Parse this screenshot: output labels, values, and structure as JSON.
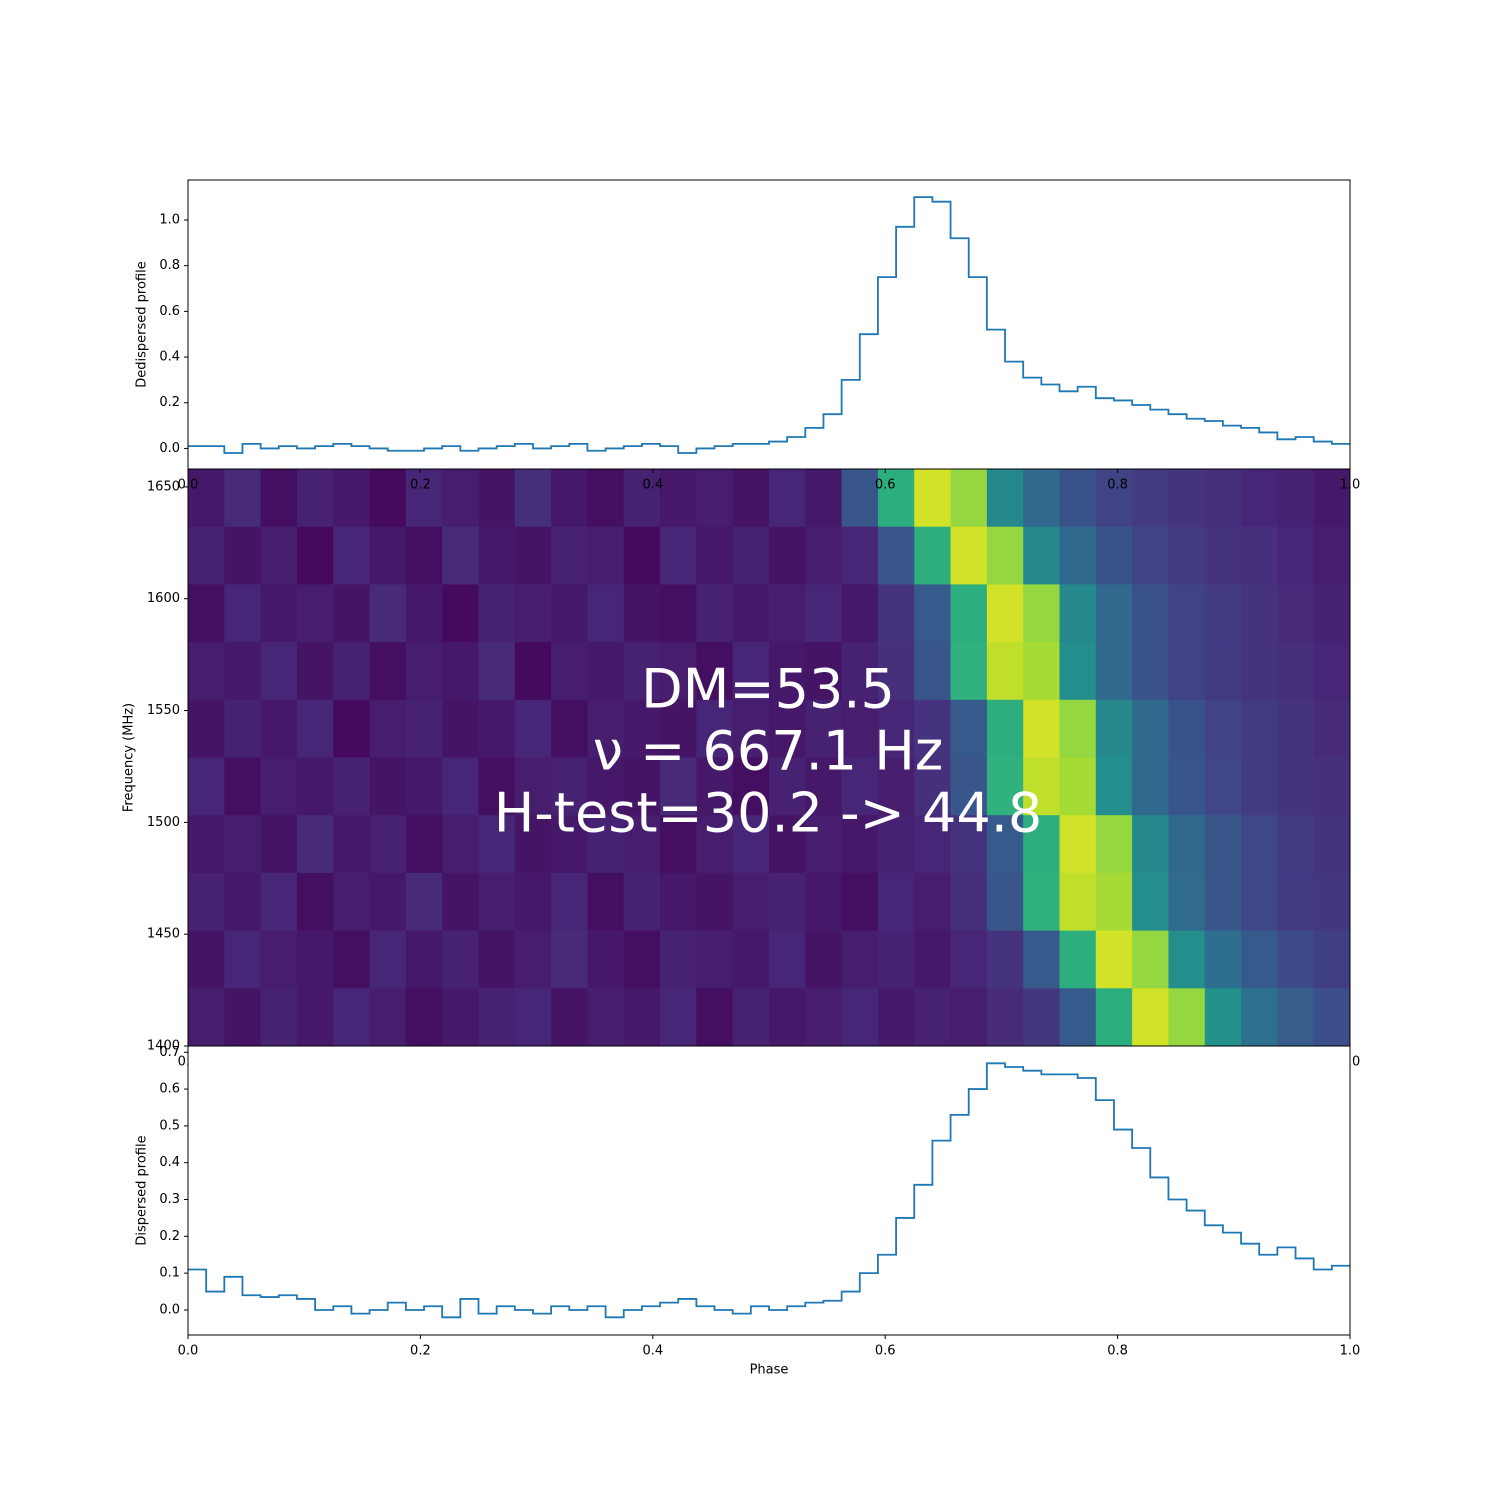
{
  "chart_data": [
    {
      "type": "step",
      "ylabel": "Dedispersed profile",
      "color": "#1f77b4",
      "xlim": [
        0,
        1
      ],
      "ylim": [
        -0.09,
        1.175
      ],
      "xticks": [
        {
          "value": 0,
          "label": "0.0"
        },
        {
          "value": 0.2,
          "label": "0.2"
        },
        {
          "value": 0.4,
          "label": "0.4"
        },
        {
          "value": 0.6,
          "label": "0.6"
        },
        {
          "value": 0.8,
          "label": "0.8"
        },
        {
          "value": 1,
          "label": "1.0"
        }
      ],
      "yticks": [
        {
          "value": 0,
          "label": "0.0"
        },
        {
          "value": 0.2,
          "label": "0.2"
        },
        {
          "value": 0.4,
          "label": "0.4"
        },
        {
          "value": 0.6,
          "label": "0.6"
        },
        {
          "value": 0.8,
          "label": "0.8"
        },
        {
          "value": 1,
          "label": "1.0"
        }
      ],
      "values": [
        0.01,
        0.01,
        -0.02,
        0.02,
        0.0,
        0.01,
        0.0,
        0.01,
        0.02,
        0.01,
        0.0,
        -0.01,
        -0.01,
        0.0,
        0.01,
        -0.01,
        0.0,
        0.01,
        0.02,
        0.0,
        0.01,
        0.02,
        -0.01,
        0.0,
        0.01,
        0.02,
        0.01,
        -0.02,
        0.0,
        0.01,
        0.02,
        0.02,
        0.03,
        0.05,
        0.09,
        0.15,
        0.3,
        0.5,
        0.75,
        0.97,
        1.1,
        1.08,
        0.92,
        0.75,
        0.52,
        0.38,
        0.31,
        0.28,
        0.25,
        0.27,
        0.22,
        0.21,
        0.19,
        0.17,
        0.15,
        0.13,
        0.12,
        0.1,
        0.09,
        0.07,
        0.04,
        0.05,
        0.03,
        0.02
      ]
    },
    {
      "type": "heatmap",
      "ylabel": "Frequency (MHz)",
      "xlim": [
        0,
        1
      ],
      "ylim": [
        1400,
        1658
      ],
      "xticks": [
        {
          "value": 0,
          "label": "0.0"
        },
        {
          "value": 0.2,
          "label": "0.2"
        },
        {
          "value": 0.4,
          "label": "0.4"
        },
        {
          "value": 0.6,
          "label": "0.6"
        },
        {
          "value": 0.8,
          "label": "0.8"
        },
        {
          "value": 1,
          "label": "1.0"
        }
      ],
      "yticks": [
        1400,
        1450,
        1500,
        1550,
        1600,
        1650
      ],
      "annotations": [
        "DM=53.5",
        "ν = 667.1 Hz",
        "H-test=30.2 -> 44.8"
      ],
      "z": [
        [
          0.3,
          0.34,
          0.28,
          0.32,
          0.3,
          0.27,
          0.33,
          0.31,
          0.29,
          0.35,
          0.3,
          0.28,
          0.32,
          0.3,
          0.31,
          0.29,
          0.33,
          0.3,
          0.45,
          0.72,
          0.95,
          0.88,
          0.6,
          0.5,
          0.44,
          0.4,
          0.38,
          0.36,
          0.35,
          0.33,
          0.32,
          0.3
        ],
        [
          0.32,
          0.29,
          0.31,
          0.27,
          0.33,
          0.3,
          0.28,
          0.34,
          0.3,
          0.29,
          0.32,
          0.31,
          0.27,
          0.33,
          0.3,
          0.32,
          0.29,
          0.31,
          0.33,
          0.45,
          0.72,
          0.95,
          0.88,
          0.6,
          0.5,
          0.44,
          0.4,
          0.38,
          0.36,
          0.35,
          0.33,
          0.31
        ],
        [
          0.28,
          0.33,
          0.3,
          0.31,
          0.29,
          0.34,
          0.3,
          0.27,
          0.32,
          0.31,
          0.3,
          0.33,
          0.29,
          0.28,
          0.32,
          0.3,
          0.31,
          0.33,
          0.3,
          0.36,
          0.46,
          0.72,
          0.95,
          0.88,
          0.6,
          0.5,
          0.44,
          0.4,
          0.38,
          0.36,
          0.34,
          0.32
        ],
        [
          0.31,
          0.3,
          0.33,
          0.29,
          0.32,
          0.28,
          0.31,
          0.3,
          0.34,
          0.27,
          0.31,
          0.3,
          0.32,
          0.31,
          0.28,
          0.33,
          0.3,
          0.29,
          0.32,
          0.35,
          0.45,
          0.73,
          0.93,
          0.9,
          0.62,
          0.5,
          0.44,
          0.4,
          0.38,
          0.36,
          0.35,
          0.33
        ],
        [
          0.29,
          0.32,
          0.3,
          0.33,
          0.27,
          0.31,
          0.32,
          0.29,
          0.3,
          0.33,
          0.28,
          0.31,
          0.3,
          0.29,
          0.33,
          0.31,
          0.3,
          0.32,
          0.31,
          0.33,
          0.36,
          0.46,
          0.72,
          0.95,
          0.88,
          0.6,
          0.5,
          0.44,
          0.4,
          0.38,
          0.36,
          0.34
        ],
        [
          0.33,
          0.28,
          0.31,
          0.3,
          0.32,
          0.29,
          0.3,
          0.33,
          0.28,
          0.31,
          0.32,
          0.3,
          0.29,
          0.34,
          0.3,
          0.28,
          0.32,
          0.3,
          0.33,
          0.31,
          0.35,
          0.45,
          0.73,
          0.93,
          0.9,
          0.62,
          0.5,
          0.45,
          0.41,
          0.38,
          0.36,
          0.35
        ],
        [
          0.3,
          0.31,
          0.29,
          0.34,
          0.3,
          0.32,
          0.28,
          0.31,
          0.33,
          0.29,
          0.3,
          0.32,
          0.31,
          0.28,
          0.31,
          0.33,
          0.29,
          0.31,
          0.3,
          0.32,
          0.33,
          0.36,
          0.46,
          0.72,
          0.95,
          0.88,
          0.6,
          0.5,
          0.45,
          0.41,
          0.38,
          0.36
        ],
        [
          0.32,
          0.3,
          0.33,
          0.28,
          0.31,
          0.3,
          0.34,
          0.29,
          0.31,
          0.3,
          0.33,
          0.28,
          0.32,
          0.3,
          0.29,
          0.31,
          0.32,
          0.3,
          0.28,
          0.33,
          0.31,
          0.35,
          0.45,
          0.73,
          0.93,
          0.9,
          0.62,
          0.51,
          0.45,
          0.41,
          0.38,
          0.37
        ],
        [
          0.29,
          0.33,
          0.31,
          0.3,
          0.28,
          0.33,
          0.3,
          0.32,
          0.29,
          0.31,
          0.34,
          0.3,
          0.28,
          0.32,
          0.31,
          0.3,
          0.33,
          0.29,
          0.31,
          0.32,
          0.3,
          0.33,
          0.36,
          0.46,
          0.72,
          0.95,
          0.88,
          0.62,
          0.52,
          0.46,
          0.42,
          0.39
        ],
        [
          0.31,
          0.29,
          0.32,
          0.3,
          0.33,
          0.31,
          0.28,
          0.3,
          0.32,
          0.33,
          0.29,
          0.31,
          0.3,
          0.33,
          0.28,
          0.32,
          0.3,
          0.31,
          0.33,
          0.3,
          0.32,
          0.31,
          0.34,
          0.37,
          0.46,
          0.72,
          0.95,
          0.88,
          0.63,
          0.53,
          0.47,
          0.43
        ]
      ]
    },
    {
      "type": "step",
      "ylabel": "Dispersed profile",
      "xlabel": "Phase",
      "color": "#1f77b4",
      "xlim": [
        0,
        1
      ],
      "ylim": [
        -0.068,
        0.717
      ],
      "xticks": [
        {
          "value": 0,
          "label": "0.0"
        },
        {
          "value": 0.2,
          "label": "0.2"
        },
        {
          "value": 0.4,
          "label": "0.4"
        },
        {
          "value": 0.6,
          "label": "0.6"
        },
        {
          "value": 0.8,
          "label": "0.8"
        },
        {
          "value": 1,
          "label": "1.0"
        }
      ],
      "yticks": [
        {
          "value": 0,
          "label": "0.0"
        },
        {
          "value": 0.1,
          "label": "0.1"
        },
        {
          "value": 0.2,
          "label": "0.2"
        },
        {
          "value": 0.3,
          "label": "0.3"
        },
        {
          "value": 0.4,
          "label": "0.4"
        },
        {
          "value": 0.5,
          "label": "0.5"
        },
        {
          "value": 0.6,
          "label": "0.6"
        },
        {
          "value": 0.7,
          "label": "0.7"
        }
      ],
      "values": [
        0.11,
        0.05,
        0.09,
        0.04,
        0.035,
        0.04,
        0.03,
        0.0,
        0.01,
        -0.01,
        0.0,
        0.02,
        0.0,
        0.01,
        -0.02,
        0.03,
        -0.01,
        0.01,
        0.0,
        -0.01,
        0.01,
        0.0,
        0.01,
        -0.02,
        0.0,
        0.01,
        0.02,
        0.03,
        0.01,
        0.0,
        -0.01,
        0.01,
        0.0,
        0.01,
        0.02,
        0.025,
        0.05,
        0.1,
        0.15,
        0.25,
        0.34,
        0.46,
        0.53,
        0.6,
        0.67,
        0.66,
        0.65,
        0.64,
        0.64,
        0.63,
        0.57,
        0.49,
        0.44,
        0.36,
        0.3,
        0.27,
        0.23,
        0.21,
        0.18,
        0.15,
        0.17,
        0.14,
        0.11,
        0.12
      ]
    }
  ]
}
